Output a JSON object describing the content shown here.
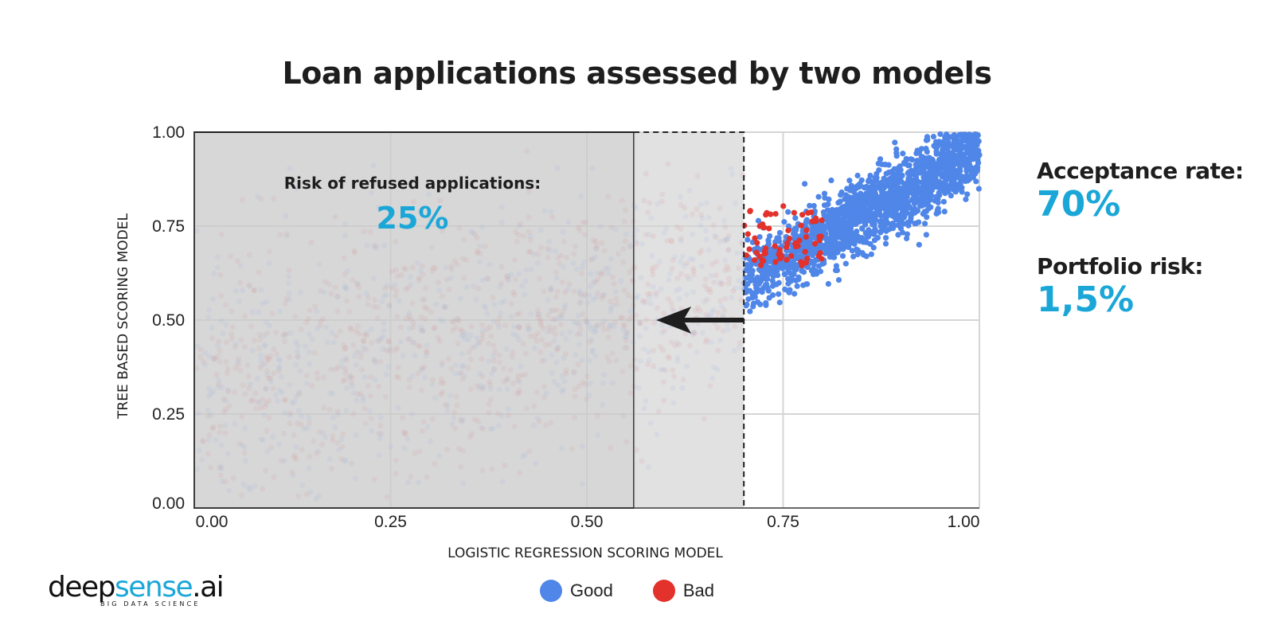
{
  "title": "Loan applications assessed by two models",
  "stats": {
    "acceptance_label": "Acceptance rate:",
    "acceptance_value": "70%",
    "portfolio_label": "Portfolio risk:",
    "portfolio_value": "1,5%"
  },
  "annotation": {
    "label": "Risk of refused applications:",
    "value": "25%"
  },
  "logo": {
    "name": "deepsense.ai",
    "tagline": "BIG DATA SCIENCE"
  },
  "colors": {
    "good": "#4f86e8",
    "bad": "#e3312b",
    "accent": "#1aa7d8"
  },
  "chart_data": {
    "type": "scatter",
    "xlabel": "LOGISTIC REGRESSION SCORING MODEL",
    "ylabel": "TREE BASED SCORING MODEL",
    "xlim": [
      0,
      1
    ],
    "ylim": [
      0,
      1
    ],
    "x_ticks": [
      "0.00",
      "0.25",
      "0.50",
      "0.75",
      "1.00"
    ],
    "y_ticks": [
      "0.00",
      "0.25",
      "0.50",
      "0.75",
      "1.00"
    ],
    "grid": true,
    "legend_position": "bottom",
    "series": [
      {
        "name": "Good",
        "color": "#4f86e8"
      },
      {
        "name": "Bad",
        "color": "#e3312b"
      }
    ],
    "refused_region": {
      "x": [
        0,
        0.56
      ]
    },
    "threshold_shift": {
      "from_x": 0.7,
      "to_x": 0.56,
      "y": 0.5
    }
  }
}
